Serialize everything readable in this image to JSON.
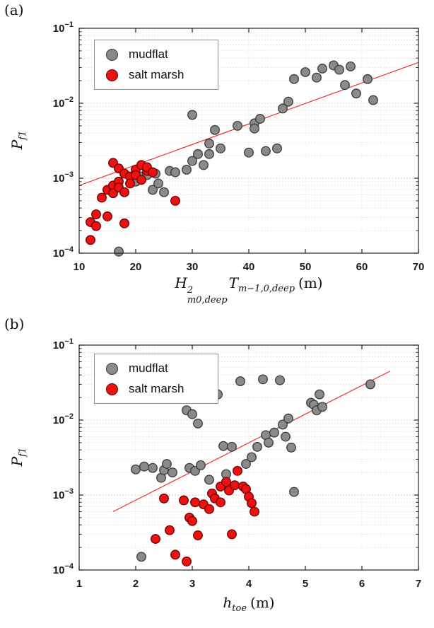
{
  "figure": {
    "background": "#ffffff",
    "axis_color": "#222222",
    "grid_major_color": "#c4c4c4",
    "grid_minor_color": "#dedede",
    "grid_vertical_color": "#e6e6e6"
  },
  "chart_data": [
    {
      "id": "a",
      "type": "scatter",
      "panel_label": "(a)",
      "xlabel": {
        "var1": "H",
        "sup1": "2",
        "sub1": "m0,deep",
        "var2": "T",
        "sub2": "m−1,0,deep",
        "unit": "(m)"
      },
      "ylabel": {
        "var": "P",
        "sub": "f1"
      },
      "xlim": [
        10,
        70
      ],
      "xticks": [
        10,
        20,
        30,
        40,
        50,
        60,
        70
      ],
      "ylog_exp_range": [
        -4,
        -1
      ],
      "grid": true,
      "legend_position": "top-left",
      "legend": [
        {
          "label": "mudflat",
          "color_key": "gray"
        },
        {
          "label": "salt marsh",
          "color_key": "red"
        }
      ],
      "trend_line": {
        "x": [
          10,
          70
        ],
        "y": [
          0.0008,
          0.035
        ],
        "color": "#f03030"
      },
      "series": [
        {
          "name": "mudflat",
          "fill": "#8a8a8a",
          "edge": "#3a3a3a",
          "points": [
            [
              17,
              0.000105
            ],
            [
              20,
              0.0009
            ],
            [
              21,
              0.00105
            ],
            [
              22,
              0.0011
            ],
            [
              23,
              0.0007
            ],
            [
              23.5,
              0.00115
            ],
            [
              24,
              0.00085
            ],
            [
              25,
              0.00065
            ],
            [
              26,
              0.00125
            ],
            [
              27,
              0.0012
            ],
            [
              29,
              0.0013
            ],
            [
              30,
              0.0017
            ],
            [
              30,
              0.007
            ],
            [
              31,
              0.0021
            ],
            [
              32,
              0.0015
            ],
            [
              33,
              0.0029
            ],
            [
              33,
              0.0021
            ],
            [
              34,
              0.0044
            ],
            [
              35,
              0.0025
            ],
            [
              38,
              0.005
            ],
            [
              40,
              0.0022
            ],
            [
              41,
              0.0054
            ],
            [
              41,
              0.0046
            ],
            [
              42,
              0.0062
            ],
            [
              43,
              0.0023
            ],
            [
              45,
              0.0025
            ],
            [
              46,
              0.0085
            ],
            [
              47,
              0.0105
            ],
            [
              48,
              0.021
            ],
            [
              50,
              0.026
            ],
            [
              52,
              0.022
            ],
            [
              53,
              0.029
            ],
            [
              55,
              0.032
            ],
            [
              56,
              0.028
            ],
            [
              57,
              0.0175
            ],
            [
              58,
              0.031
            ],
            [
              59,
              0.0135
            ],
            [
              61,
              0.021
            ],
            [
              62,
              0.011
            ]
          ]
        },
        {
          "name": "salt marsh",
          "fill": "#ee1111",
          "edge": "#6b0000",
          "points": [
            [
              12,
              0.00026
            ],
            [
              12,
              0.00015
            ],
            [
              13,
              0.00023
            ],
            [
              13,
              0.00033
            ],
            [
              14,
              0.00055
            ],
            [
              15,
              0.00031
            ],
            [
              15,
              0.0007
            ],
            [
              16,
              0.0008
            ],
            [
              16,
              0.00063
            ],
            [
              16,
              0.0016
            ],
            [
              17,
              0.00135
            ],
            [
              17,
              0.0009
            ],
            [
              17,
              0.00075
            ],
            [
              18,
              0.00115
            ],
            [
              18,
              0.00065
            ],
            [
              18,
              0.00025
            ],
            [
              19,
              0.00105
            ],
            [
              19,
              0.00085
            ],
            [
              20,
              0.0013
            ],
            [
              20,
              0.0011
            ],
            [
              21,
              0.0015
            ],
            [
              21,
              0.00095
            ],
            [
              22,
              0.00125
            ],
            [
              22,
              0.0014
            ],
            [
              23,
              0.0012
            ],
            [
              27,
              0.0005
            ]
          ]
        }
      ]
    },
    {
      "id": "b",
      "type": "scatter",
      "panel_label": "(b)",
      "xlabel": {
        "var": "h",
        "sub": "toe",
        "unit": "(m)"
      },
      "ylabel": {
        "var": "P",
        "sub": "f1"
      },
      "xlim": [
        1,
        7
      ],
      "xticks": [
        1,
        2,
        3,
        4,
        5,
        6,
        7
      ],
      "ylog_exp_range": [
        -4,
        -1
      ],
      "grid": true,
      "legend_position": "top-left",
      "legend": [
        {
          "label": "mudflat",
          "color_key": "gray"
        },
        {
          "label": "salt marsh",
          "color_key": "red"
        }
      ],
      "trend_line": {
        "x": [
          1.6,
          6.5
        ],
        "y": [
          0.0006,
          0.045
        ],
        "color": "#f03030"
      },
      "series": [
        {
          "name": "mudflat",
          "fill": "#8a8a8a",
          "edge": "#3a3a3a",
          "points": [
            [
              2.0,
              0.0022
            ],
            [
              2.1,
              0.00015
            ],
            [
              2.15,
              0.0024
            ],
            [
              2.3,
              0.0023
            ],
            [
              2.45,
              0.0017
            ],
            [
              2.5,
              0.00215
            ],
            [
              2.55,
              0.0026
            ],
            [
              2.65,
              0.002
            ],
            [
              2.9,
              0.0135
            ],
            [
              2.95,
              0.0023
            ],
            [
              3.0,
              0.012
            ],
            [
              3.05,
              0.0021
            ],
            [
              3.1,
              0.009
            ],
            [
              3.15,
              0.0025
            ],
            [
              3.3,
              0.0016
            ],
            [
              3.45,
              0.022
            ],
            [
              3.55,
              0.0045
            ],
            [
              3.6,
              0.0019
            ],
            [
              3.7,
              0.0044
            ],
            [
              3.85,
              0.033
            ],
            [
              3.95,
              0.0026
            ],
            [
              4.05,
              0.0032
            ],
            [
              4.15,
              0.0044
            ],
            [
              4.25,
              0.035
            ],
            [
              4.3,
              0.0063
            ],
            [
              4.35,
              0.005
            ],
            [
              4.45,
              0.0068
            ],
            [
              4.55,
              0.034
            ],
            [
              4.6,
              0.0087
            ],
            [
              4.65,
              0.006
            ],
            [
              4.7,
              0.0105
            ],
            [
              4.75,
              0.0043
            ],
            [
              4.8,
              0.0011
            ],
            [
              5.1,
              0.017
            ],
            [
              5.15,
              0.016
            ],
            [
              5.2,
              0.0135
            ],
            [
              5.25,
              0.022
            ],
            [
              5.3,
              0.015
            ],
            [
              6.15,
              0.03
            ]
          ]
        },
        {
          "name": "salt marsh",
          "fill": "#ee1111",
          "edge": "#6b0000",
          "points": [
            [
              2.35,
              0.00026
            ],
            [
              2.5,
              0.0009
            ],
            [
              2.6,
              0.00034
            ],
            [
              2.7,
              0.00016
            ],
            [
              2.85,
              0.00085
            ],
            [
              2.9,
              0.00013
            ],
            [
              2.95,
              0.0005
            ],
            [
              3.0,
              0.00045
            ],
            [
              3.05,
              0.0008
            ],
            [
              3.1,
              0.00029
            ],
            [
              3.2,
              0.00075
            ],
            [
              3.3,
              0.00065
            ],
            [
              3.35,
              0.00105
            ],
            [
              3.4,
              0.0009
            ],
            [
              3.5,
              0.0013
            ],
            [
              3.5,
              0.0008
            ],
            [
              3.6,
              0.0015
            ],
            [
              3.65,
              0.00115
            ],
            [
              3.7,
              0.0003
            ],
            [
              3.75,
              0.00135
            ],
            [
              3.8,
              0.0021
            ],
            [
              3.9,
              0.0013
            ],
            [
              3.95,
              0.0012
            ],
            [
              4.0,
              0.00095
            ],
            [
              4.05,
              0.00078
            ],
            [
              4.1,
              0.0006
            ]
          ]
        }
      ]
    }
  ]
}
